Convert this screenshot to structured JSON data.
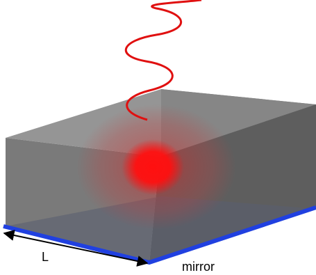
{
  "labels": {
    "length": "L",
    "mirror": "mirror"
  }
}
